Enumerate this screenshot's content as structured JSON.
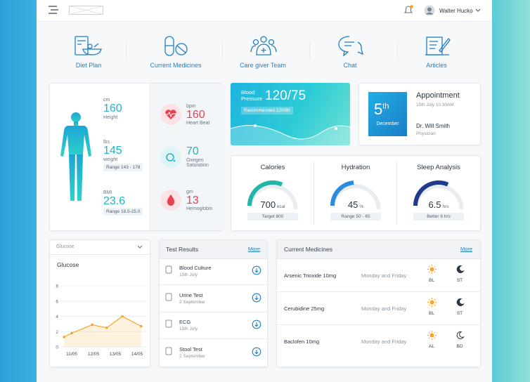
{
  "header": {
    "user_name": "Walter Hucko"
  },
  "nav": [
    "Diet Plan",
    "Current Medicines",
    "Care giver Team",
    "Chat",
    "Articles"
  ],
  "body_stats": [
    {
      "unit": "cm",
      "value": "160",
      "label": "Height"
    },
    {
      "unit": "lbs",
      "value": "145",
      "label": "weight",
      "range": "Range 143 - 178"
    },
    {
      "unit": "BMI",
      "value": "23.6",
      "range": "Range 18.5-25.0"
    }
  ],
  "vitals": [
    {
      "unit": "bpm",
      "value": "160",
      "label": "Heart Beat"
    },
    {
      "value": "70",
      "label": "Oxegen Saturation"
    },
    {
      "unit": "gm",
      "value": "13",
      "label": "Hemoglobin"
    }
  ],
  "blood_pressure": {
    "label": "Blood Pressure",
    "value": "120/75",
    "recommended": "Recommended 120/80"
  },
  "appointment": {
    "day": "5",
    "day_suffix": "th",
    "month": "December",
    "title": "Appointment",
    "time": "15th July 10:30AM",
    "doctor": "Dr. Will Smith",
    "role": "Physician"
  },
  "summary": [
    {
      "title": "Calories",
      "value": "700",
      "unit": "kcal",
      "note": "Target 800"
    },
    {
      "title": "Hydration",
      "value": "45",
      "unit": "%",
      "note": "Range 50 - 65"
    },
    {
      "title": "Sleep Analysis",
      "value": "6.5",
      "unit": "hrs",
      "note": "Better 8 hrs"
    }
  ],
  "chart_data": {
    "type": "line",
    "selector": "Glucose",
    "title": "Glucose",
    "color": "#f5a623",
    "x": [
      0.65,
      1,
      1.94,
      2.61,
      3.32,
      4.19
    ],
    "values": [
      1.3,
      1.8,
      2.9,
      2.5,
      4.0,
      2.7
    ],
    "xlim": [
      0.5,
      4.5
    ],
    "xticks": [
      {
        "value": 1,
        "label": "11/05"
      },
      {
        "value": 2,
        "label": "12/05"
      },
      {
        "value": 3,
        "label": "13/05"
      },
      {
        "value": 4,
        "label": "14/05"
      }
    ],
    "ylim": [
      0,
      8
    ],
    "yticks": [
      0,
      2,
      4,
      6,
      8
    ],
    "grid": true
  },
  "test_results": {
    "title": "Test Results",
    "more": "More",
    "rows": [
      {
        "name": "Blood Culture",
        "date": "15th July"
      },
      {
        "name": "Urine Test",
        "date": "2 September"
      },
      {
        "name": "ECG",
        "date": "15th July"
      },
      {
        "name": "Stool Test",
        "date": "2 September"
      }
    ]
  },
  "medicines": {
    "title": "Current Medicines",
    "more": "More",
    "rows": [
      {
        "name": "Arsenic Trioxide 10mg",
        "schedule": "Monday and Friday",
        "times": [
          "BL",
          "ST"
        ]
      },
      {
        "name": "Cerubidine 25mg",
        "schedule": "Monday and Friday",
        "times": [
          "BL",
          "ST"
        ]
      },
      {
        "name": "Baclofen 10mg",
        "schedule": "Monday and Friday",
        "times": [
          "AL",
          "BD"
        ]
      }
    ]
  }
}
